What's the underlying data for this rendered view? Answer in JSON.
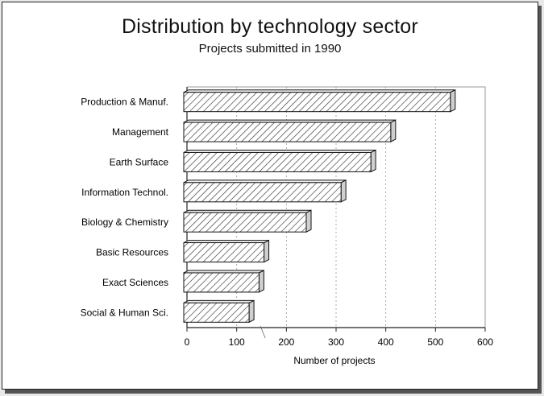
{
  "chart_data": {
    "type": "bar",
    "orientation": "horizontal",
    "title": "Distribution by technology sector",
    "subtitle": "Projects submitted in 1990",
    "xlabel": "Number of projects",
    "ylabel": "",
    "categories": [
      "Production & Manuf.",
      "Management",
      "Earth Surface",
      "Information Technol.",
      "Biology & Chemistry",
      "Basic Resources",
      "Exact Sciences",
      "Social & Human Sci."
    ],
    "values": [
      530,
      410,
      370,
      310,
      240,
      155,
      145,
      125
    ],
    "xlim": [
      0,
      600
    ],
    "xticks": [
      "0",
      "100",
      "200",
      "300",
      "400",
      "500",
      "600"
    ],
    "grid": "vertical dashed",
    "bar_style": "3D hatched",
    "colors": {
      "bar_fill": "#ffffff",
      "hatch": "#333333",
      "grid": "#999999"
    }
  }
}
